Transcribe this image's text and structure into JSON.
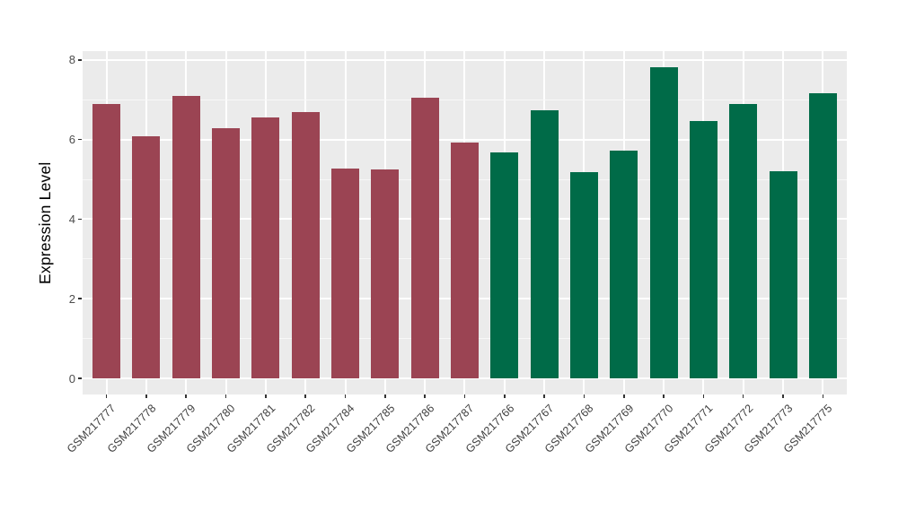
{
  "chart_data": {
    "type": "bar",
    "title": "",
    "xlabel": "",
    "ylabel": "Expression Level",
    "ylim": [
      -0.4,
      8.23
    ],
    "y_ticks": [
      0,
      2,
      4,
      6,
      8
    ],
    "y_minor_ticks": [
      1,
      3,
      5,
      7
    ],
    "grid": true,
    "legend_position": "none",
    "categories": [
      "GSM217777",
      "GSM217778",
      "GSM217779",
      "GSM217780",
      "GSM217781",
      "GSM217782",
      "GSM217784",
      "GSM217785",
      "GSM217786",
      "GSM217787",
      "GSM217766",
      "GSM217767",
      "GSM217768",
      "GSM217769",
      "GSM217770",
      "GSM217771",
      "GSM217772",
      "GSM217773",
      "GSM217775"
    ],
    "values": [
      6.9,
      6.08,
      7.1,
      6.28,
      6.55,
      6.7,
      5.28,
      5.25,
      7.04,
      5.93,
      5.68,
      6.73,
      5.18,
      5.73,
      7.82,
      6.46,
      6.9,
      5.21,
      7.17
    ],
    "group_assignment": [
      "group1",
      "group1",
      "group1",
      "group1",
      "group1",
      "group1",
      "group1",
      "group1",
      "group1",
      "group1",
      "group2",
      "group2",
      "group2",
      "group2",
      "group2",
      "group2",
      "group2",
      "group2",
      "group2"
    ],
    "group_colors": {
      "group1": "#9B4453",
      "group2": "#006B48"
    }
  },
  "colors": {
    "figure_bg": "#FFFFFF",
    "panel_bg": "#EBEBEB",
    "grid": "#FFFFFF",
    "tick_mark": "#333333",
    "axis_text": "#4D4D4D",
    "axis_title": "#000000"
  }
}
